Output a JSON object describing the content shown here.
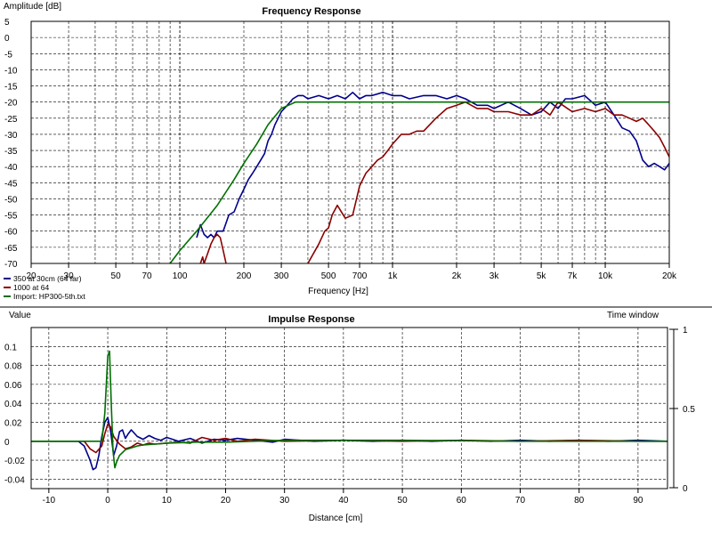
{
  "chart_data": [
    {
      "type": "line",
      "title": "Frequency Response",
      "xlabel": "Frequency [Hz]",
      "ylabel": "Amplitude [dB]",
      "x_scale": "log",
      "xlim": [
        20,
        20000
      ],
      "ylim": [
        -70,
        5
      ],
      "x_ticks": [
        {
          "v": 20,
          "label": "20"
        },
        {
          "v": 30,
          "label": "30"
        },
        {
          "v": 50,
          "label": "50"
        },
        {
          "v": 70,
          "label": "70"
        },
        {
          "v": 100,
          "label": "100"
        },
        {
          "v": 200,
          "label": "200"
        },
        {
          "v": 300,
          "label": "300"
        },
        {
          "v": 500,
          "label": "500"
        },
        {
          "v": 700,
          "label": "700"
        },
        {
          "v": 1000,
          "label": "1k"
        },
        {
          "v": 2000,
          "label": "2k"
        },
        {
          "v": 3000,
          "label": "3k"
        },
        {
          "v": 5000,
          "label": "5k"
        },
        {
          "v": 7000,
          "label": "7k"
        },
        {
          "v": 10000,
          "label": "10k"
        },
        {
          "v": 20000,
          "label": "20k"
        }
      ],
      "y_ticks": [
        5,
        0,
        -5,
        -10,
        -15,
        -20,
        -25,
        -30,
        -35,
        -40,
        -45,
        -50,
        -55,
        -60,
        -65,
        -70
      ],
      "grid": true,
      "legend_position": "bottom-left",
      "series": [
        {
          "name": "350 at 30cm (64 far)",
          "color": "#00008b",
          "x": [
            120,
            125,
            130,
            135,
            140,
            145,
            150,
            160,
            170,
            180,
            190,
            200,
            210,
            220,
            230,
            240,
            250,
            260,
            270,
            280,
            290,
            300,
            320,
            340,
            360,
            380,
            400,
            450,
            500,
            550,
            600,
            650,
            700,
            750,
            800,
            900,
            1000,
            1100,
            1200,
            1400,
            1600,
            1800,
            2000,
            2200,
            2500,
            2800,
            3000,
            3500,
            4000,
            4500,
            5000,
            5500,
            6000,
            6500,
            7000,
            8000,
            9000,
            10000,
            11000,
            12000,
            13000,
            14000,
            15000,
            16000,
            17000,
            18000,
            19000,
            20000
          ],
          "y": [
            -62,
            -58,
            -61,
            -62,
            -61,
            -62,
            -60,
            -60,
            -55,
            -54,
            -50,
            -47,
            -44,
            -42,
            -40,
            -38,
            -36,
            -32,
            -30,
            -27,
            -25,
            -23,
            -21,
            -19,
            -18,
            -18,
            -19,
            -18,
            -19,
            -18,
            -19,
            -17,
            -19,
            -18,
            -18,
            -17,
            -18,
            -18,
            -19,
            -18,
            -18,
            -19,
            -18,
            -19,
            -21,
            -21,
            -22,
            -20,
            -22,
            -24,
            -23,
            -20,
            -22,
            -19,
            -19,
            -18,
            -21,
            -20,
            -24,
            -28,
            -29,
            -32,
            -38,
            -40,
            -39,
            -40,
            -41,
            -39
          ]
        },
        {
          "name": "1000 at 64",
          "color": "#8b0000",
          "x": [
            125,
            128,
            130,
            135,
            140,
            145,
            150,
            155,
            160,
            165,
            170,
            380,
            400,
            450,
            480,
            500,
            520,
            550,
            600,
            650,
            700,
            750,
            800,
            850,
            900,
            950,
            1000,
            1100,
            1200,
            1300,
            1400,
            1600,
            1800,
            2000,
            2200,
            2500,
            2800,
            3000,
            3500,
            4000,
            4500,
            5000,
            5500,
            6000,
            7000,
            8000,
            9000,
            10000,
            11000,
            12000,
            13000,
            14000,
            15000,
            16000,
            17000,
            18000,
            19000,
            20000
          ],
          "y": [
            -70,
            -68,
            -70,
            -67,
            -64,
            -62,
            -61,
            -62,
            -66,
            -70,
            -72,
            -72,
            -70,
            -64,
            -60,
            -59,
            -55,
            -52,
            -56,
            -55,
            -46,
            -42,
            -40,
            -38,
            -37,
            -35,
            -33,
            -30,
            -30,
            -29,
            -29,
            -25,
            -22,
            -21,
            -20,
            -22,
            -22,
            -23,
            -23,
            -24,
            -24,
            -22,
            -24,
            -20,
            -23,
            -22,
            -23,
            -22,
            -24,
            -24,
            -25,
            -26,
            -25,
            -27,
            -29,
            -31,
            -34,
            -37
          ]
        },
        {
          "name": "Import: HP300-5th.txt",
          "color": "#007000",
          "x": [
            90,
            100,
            120,
            150,
            180,
            200,
            230,
            260,
            300,
            350,
            400,
            500,
            700,
            1000,
            2000,
            5000,
            10000,
            20000
          ],
          "y": [
            -70,
            -66,
            -60,
            -52,
            -44,
            -39,
            -33,
            -27,
            -22,
            -20,
            -20,
            -20,
            -20,
            -20,
            -20,
            -20,
            -20,
            -20
          ]
        }
      ]
    },
    {
      "type": "line",
      "title": "Impulse Response",
      "xlabel": "Distance [cm]",
      "ylabel": "Value",
      "y2label": "Time window",
      "xlim": [
        -13,
        95
      ],
      "ylim": [
        -0.05,
        0.12
      ],
      "x_ticks": [
        -10,
        0,
        10,
        20,
        30,
        40,
        50,
        60,
        70,
        80,
        90
      ],
      "y_ticks": [
        {
          "v": 0.1,
          "label": "0.1"
        },
        {
          "v": 0.08,
          "label": "0.08"
        },
        {
          "v": 0.06,
          "label": "0.06"
        },
        {
          "v": 0.04,
          "label": "0.04"
        },
        {
          "v": 0.02,
          "label": "0.02"
        },
        {
          "v": 0,
          "label": "0"
        },
        {
          "v": -0.02,
          "label": "-0.02"
        },
        {
          "v": -0.04,
          "label": "-0.04"
        }
      ],
      "y2_ticks": [
        {
          "v": 1,
          "label": "1"
        },
        {
          "v": 0.5,
          "label": "0.5"
        },
        {
          "v": 0,
          "label": "0"
        }
      ],
      "grid": true,
      "series": [
        {
          "name": "350 at 30cm (64 far)",
          "color": "#00008b",
          "x": [
            -13,
            -5,
            -4,
            -3,
            -2.5,
            -2,
            -1.5,
            -1,
            -0.5,
            0,
            0.5,
            1,
            1.5,
            2,
            2.5,
            3,
            3.5,
            4,
            5,
            6,
            7,
            8,
            9,
            10,
            12,
            14,
            16,
            18,
            20,
            22,
            25,
            28,
            30,
            35,
            40,
            45,
            50,
            55,
            60,
            65,
            70,
            75,
            80,
            85,
            90,
            95
          ],
          "y": [
            0,
            0,
            -0.005,
            -0.02,
            -0.03,
            -0.028,
            -0.015,
            0.005,
            0.02,
            0.025,
            0.01,
            -0.015,
            -0.005,
            0.01,
            0.012,
            0.003,
            0.008,
            0.012,
            0.005,
            0.002,
            0.006,
            0.003,
            0.001,
            0.004,
            0,
            0.003,
            -0.002,
            0.002,
            0.001,
            0.003,
            0.001,
            -0.001,
            0.002,
            0,
            0.001,
            0,
            0.001,
            0,
            0.001,
            0,
            0.001,
            0,
            0.001,
            0,
            0.001,
            0
          ]
        },
        {
          "name": "1000 at 64",
          "color": "#8b0000",
          "x": [
            -13,
            -4,
            -3,
            -2,
            -1,
            -0.5,
            0,
            0.5,
            1,
            2,
            3,
            4,
            5,
            6,
            7,
            8,
            10,
            12,
            14,
            16,
            18,
            20,
            22,
            25,
            30,
            40,
            50,
            60,
            70,
            80,
            90,
            95
          ],
          "y": [
            0,
            0,
            -0.008,
            -0.012,
            -0.005,
            0.008,
            0.018,
            0.015,
            0.005,
            -0.003,
            -0.008,
            -0.006,
            -0.002,
            -0.004,
            -0.002,
            -0.003,
            -0.002,
            -0.001,
            -0.002,
            0.004,
            0.001,
            0.003,
            0,
            0.002,
            0,
            0.001,
            0,
            0.001,
            0,
            0.001,
            0,
            0
          ]
        },
        {
          "name": "Import: HP300-5th.txt",
          "color": "#007000",
          "x": [
            -13,
            -1,
            -0.5,
            0,
            0.3,
            0.6,
            0.9,
            1.2,
            1.5,
            2,
            2.5,
            3,
            4,
            5,
            6,
            8,
            10,
            15,
            20,
            30,
            40,
            50,
            60,
            70,
            80,
            90,
            95
          ],
          "y": [
            0,
            0,
            0.03,
            0.09,
            0.095,
            0.04,
            -0.01,
            -0.028,
            -0.022,
            -0.015,
            -0.012,
            -0.009,
            -0.007,
            -0.005,
            -0.004,
            -0.003,
            -0.002,
            -0.001,
            -0.001,
            0.001,
            0.001,
            0.001,
            0.0005,
            0,
            0,
            0,
            0
          ]
        }
      ]
    }
  ]
}
